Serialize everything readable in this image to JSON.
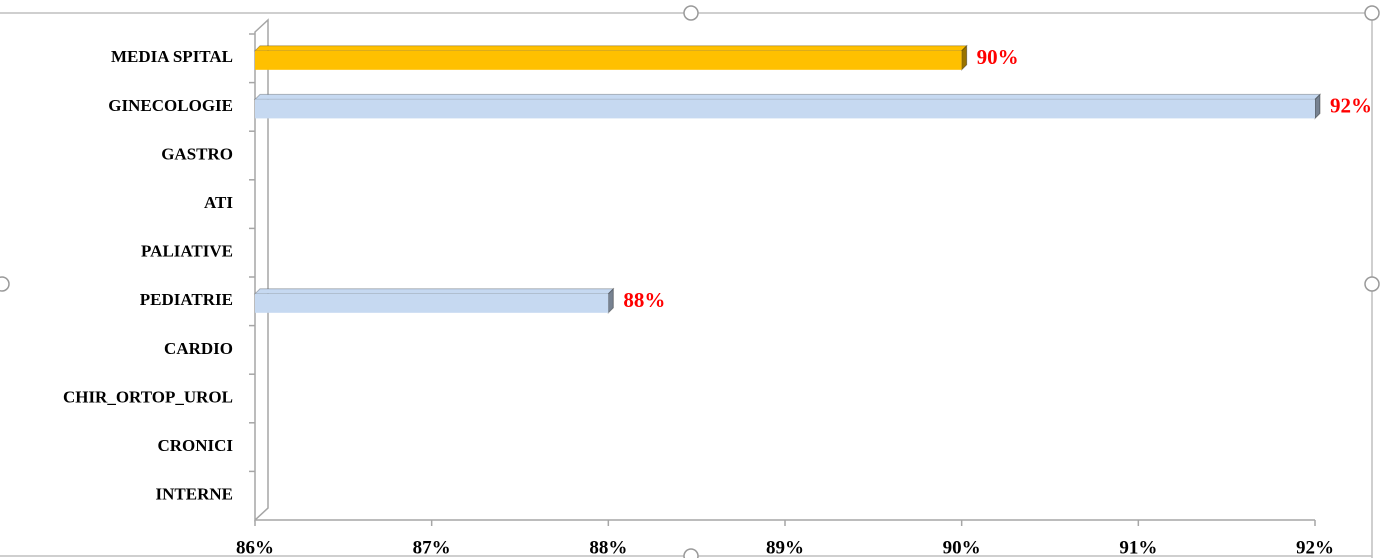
{
  "chart_data": {
    "type": "bar",
    "orientation": "horizontal",
    "categories": [
      "MEDIA SPITAL",
      "GINECOLOGIE",
      "GASTRO",
      "ATI",
      "PALIATIVE",
      "PEDIATRIE",
      "CARDIO",
      "CHIR_ORTOP_UROL",
      "CRONICI",
      "INTERNE"
    ],
    "values": [
      90,
      92,
      null,
      null,
      null,
      88,
      null,
      null,
      null,
      null
    ],
    "value_labels": [
      "90%",
      "92%",
      null,
      null,
      null,
      "88%",
      null,
      null,
      null,
      null
    ],
    "colors": [
      "#ffc000",
      "#c6d9f1",
      "#c6d9f1",
      "#c6d9f1",
      "#c6d9f1",
      "#c6d9f1",
      "#c6d9f1",
      "#c6d9f1",
      "#c6d9f1",
      "#c6d9f1"
    ],
    "xlim": [
      86,
      92
    ],
    "xticks": [
      {
        "value": 86,
        "label": "86%"
      },
      {
        "value": 87,
        "label": "87%"
      },
      {
        "value": 88,
        "label": "88%"
      },
      {
        "value": 89,
        "label": "89%"
      },
      {
        "value": 90,
        "label": "90%"
      },
      {
        "value": 91,
        "label": "91%"
      },
      {
        "value": 92,
        "label": "92%"
      }
    ]
  }
}
